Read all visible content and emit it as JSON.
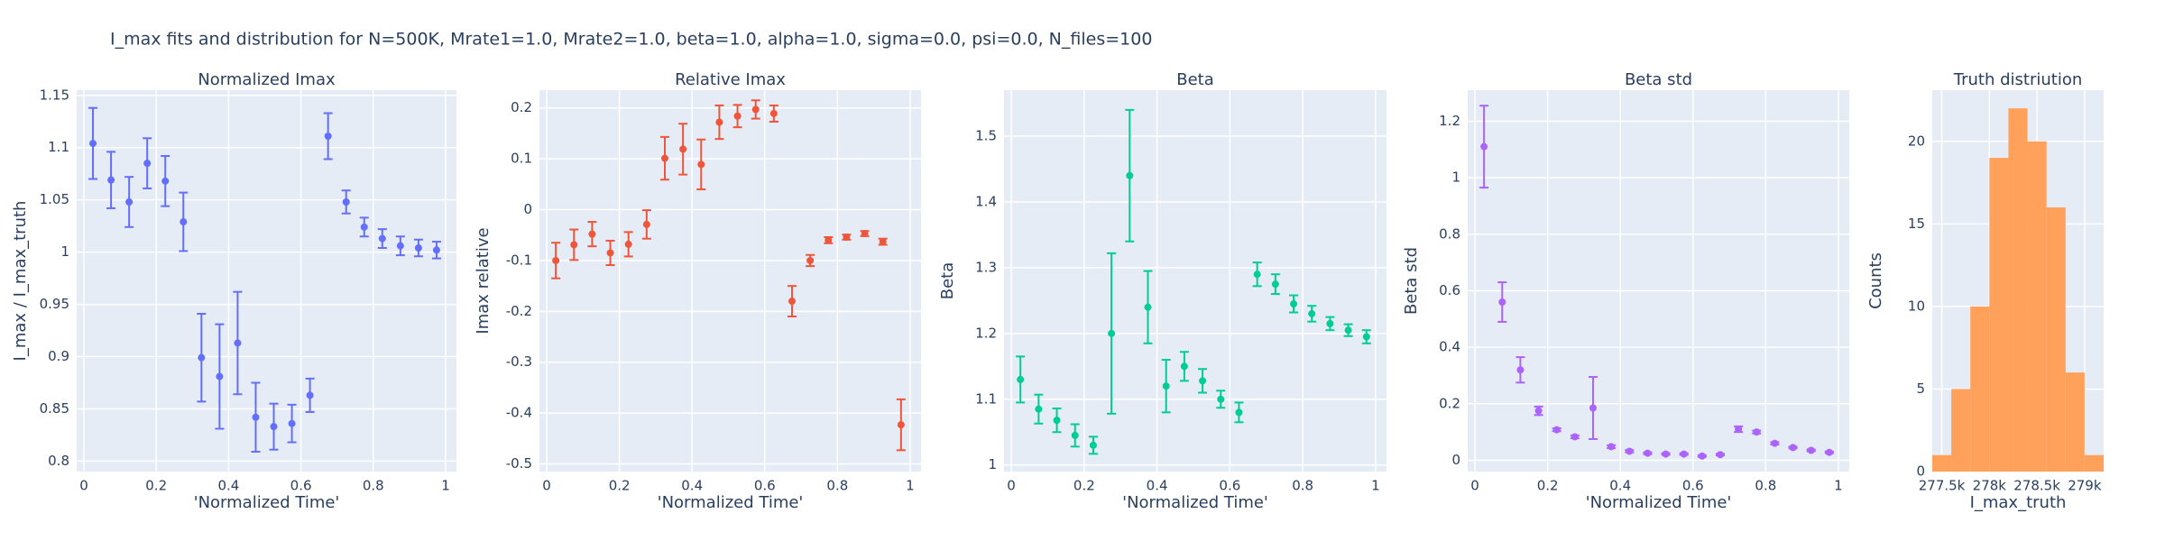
{
  "title": "I_max fits and distribution for N=500K, Mrate1=1.0, Mrate2=1.0, beta=1.0, alpha=1.0, sigma=0.0,  psi=0.0, N_files=100",
  "chart_data": [
    {
      "type": "scatter",
      "title": "Normalized Imax",
      "x_label": "'Normalized Time'",
      "y_label": "I_max / I_max_truth",
      "color": "#636efa",
      "x": [
        0.025,
        0.075,
        0.125,
        0.175,
        0.225,
        0.275,
        0.325,
        0.375,
        0.425,
        0.475,
        0.525,
        0.575,
        0.625,
        0.675,
        0.725,
        0.775,
        0.825,
        0.875,
        0.925,
        0.975
      ],
      "values": [
        1.104,
        1.069,
        1.048,
        1.085,
        1.068,
        1.029,
        0.899,
        0.881,
        0.913,
        0.842,
        0.833,
        0.836,
        0.863,
        1.111,
        1.048,
        1.024,
        1.013,
        1.006,
        1.004,
        1.002
      ],
      "errors": [
        0.034,
        0.027,
        0.024,
        0.024,
        0.024,
        0.028,
        0.042,
        0.05,
        0.049,
        0.033,
        0.022,
        0.018,
        0.016,
        0.022,
        0.011,
        0.009,
        0.009,
        0.009,
        0.008,
        0.008
      ],
      "xlim": [
        -0.02,
        1.03
      ],
      "xticks": [
        0,
        0.2,
        0.4,
        0.6,
        0.8,
        1
      ],
      "ylim": [
        0.79,
        1.155
      ],
      "yticks": [
        0.8,
        0.85,
        0.9,
        0.95,
        1,
        1.05,
        1.1,
        1.15
      ],
      "grid": true
    },
    {
      "type": "scatter",
      "title": "Relative Imax",
      "x_label": "'Normalized Time'",
      "y_label": "Imax relative",
      "color": "#ef553b",
      "x": [
        0.025,
        0.075,
        0.125,
        0.175,
        0.225,
        0.275,
        0.325,
        0.375,
        0.425,
        0.475,
        0.525,
        0.575,
        0.625,
        0.675,
        0.725,
        0.775,
        0.825,
        0.875,
        0.925,
        0.975
      ],
      "values": [
        -0.1,
        -0.069,
        -0.048,
        -0.085,
        -0.068,
        -0.029,
        0.101,
        0.119,
        0.089,
        0.172,
        0.184,
        0.197,
        0.189,
        -0.18,
        -0.1,
        -0.06,
        -0.054,
        -0.047,
        -0.063,
        -0.423
      ],
      "errors": [
        0.035,
        0.03,
        0.024,
        0.024,
        0.024,
        0.028,
        0.042,
        0.05,
        0.049,
        0.033,
        0.022,
        0.018,
        0.016,
        0.03,
        0.011,
        0.006,
        0.005,
        0.005,
        0.006,
        0.05
      ],
      "xlim": [
        -0.02,
        1.03
      ],
      "xticks": [
        0,
        0.2,
        0.4,
        0.6,
        0.8,
        1
      ],
      "ylim": [
        -0.515,
        0.235
      ],
      "yticks": [
        -0.5,
        -0.4,
        -0.3,
        -0.2,
        -0.1,
        0,
        0.1,
        0.2
      ],
      "grid": true
    },
    {
      "type": "scatter",
      "title": "Beta",
      "x_label": "'Normalized Time'",
      "y_label": "Beta",
      "color": "#00cc96",
      "x": [
        0.025,
        0.075,
        0.125,
        0.175,
        0.225,
        0.275,
        0.325,
        0.375,
        0.425,
        0.475,
        0.525,
        0.575,
        0.625,
        0.675,
        0.725,
        0.775,
        0.825,
        0.875,
        0.925,
        0.975
      ],
      "values": [
        1.13,
        1.085,
        1.068,
        1.045,
        1.03,
        1.2,
        1.44,
        1.24,
        1.12,
        1.15,
        1.128,
        1.1,
        1.08,
        1.29,
        1.275,
        1.245,
        1.23,
        1.215,
        1.205,
        1.195
      ],
      "errors": [
        0.035,
        0.022,
        0.018,
        0.017,
        0.013,
        0.122,
        0.1,
        0.055,
        0.04,
        0.022,
        0.018,
        0.013,
        0.015,
        0.018,
        0.015,
        0.013,
        0.012,
        0.01,
        0.009,
        0.01
      ],
      "xlim": [
        -0.02,
        1.03
      ],
      "xticks": [
        0,
        0.2,
        0.4,
        0.6,
        0.8,
        1
      ],
      "ylim": [
        0.99,
        1.57
      ],
      "yticks": [
        1,
        1.1,
        1.2,
        1.3,
        1.4,
        1.5
      ],
      "grid": true
    },
    {
      "type": "scatter",
      "title": "Beta std",
      "x_label": "'Normalized Time'",
      "y_label": "Beta std",
      "color": "#ab63fa",
      "x": [
        0.025,
        0.075,
        0.125,
        0.175,
        0.225,
        0.275,
        0.325,
        0.375,
        0.425,
        0.475,
        0.525,
        0.575,
        0.625,
        0.675,
        0.725,
        0.775,
        0.825,
        0.875,
        0.925,
        0.975
      ],
      "values": [
        1.11,
        0.56,
        0.32,
        0.175,
        0.108,
        0.083,
        0.185,
        0.048,
        0.032,
        0.025,
        0.022,
        0.022,
        0.015,
        0.02,
        0.11,
        0.1,
        0.06,
        0.045,
        0.035,
        0.028
      ],
      "errors": [
        0.145,
        0.07,
        0.045,
        0.015,
        0.005,
        0.005,
        0.11,
        0.005,
        0.004,
        0.003,
        0.003,
        0.003,
        0.003,
        0.003,
        0.01,
        0.005,
        0.004,
        0.003,
        0.003,
        0.003
      ],
      "xlim": [
        -0.02,
        1.03
      ],
      "xticks": [
        0,
        0.2,
        0.4,
        0.6,
        0.8,
        1
      ],
      "ylim": [
        -0.04,
        1.31
      ],
      "yticks": [
        0,
        0.2,
        0.4,
        0.6,
        0.8,
        1,
        1.2
      ],
      "grid": true
    },
    {
      "type": "histogram",
      "title": "Truth distriution",
      "x_label": "I_max_truth",
      "y_label": "Counts",
      "color": "#ffa15a",
      "bins": [
        277400,
        277600,
        277800,
        278000,
        278200,
        278400,
        278600,
        278800,
        279000,
        279200
      ],
      "values": [
        1,
        5,
        10,
        19,
        22,
        20,
        16,
        6,
        1
      ],
      "xlim": [
        277400,
        279200
      ],
      "xticks": [
        {
          "value": 277500,
          "label": "277.5k"
        },
        {
          "value": 278000,
          "label": "278k"
        },
        {
          "value": 278500,
          "label": "278.5k"
        },
        {
          "value": 279000,
          "label": "279k"
        }
      ],
      "ylim": [
        0,
        23.1
      ],
      "yticks": [
        0,
        5,
        10,
        15,
        20
      ],
      "grid": true
    }
  ]
}
